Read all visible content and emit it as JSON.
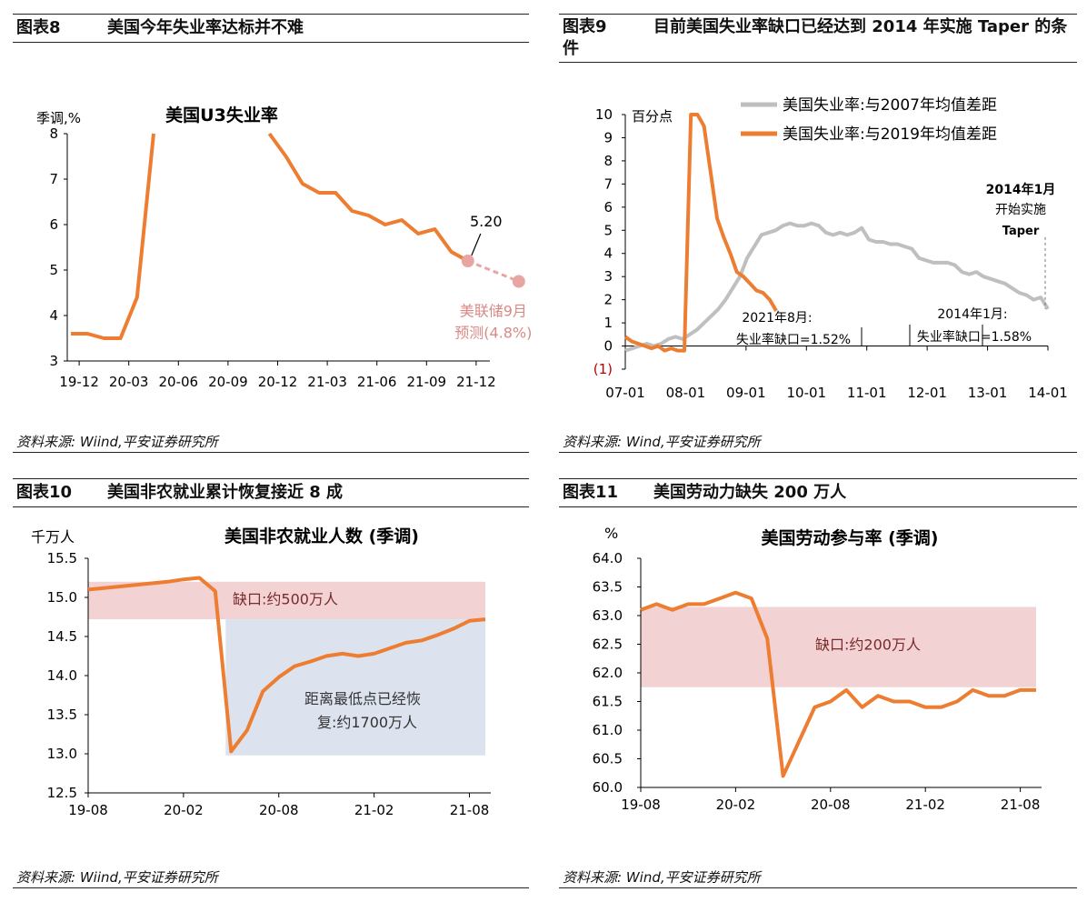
{
  "panels": [
    {
      "id": "p8",
      "header_num": "图表8",
      "header_title": "美国今年失业率达标并不难",
      "source": "资料来源: Wiind,平安证券研究所"
    },
    {
      "id": "p9",
      "header_num": "图表9",
      "header_title": "目前美国失业率缺口已经达到 2014 年实施 Taper 的条件",
      "source": "资料来源: Wind,平安证券研究所"
    },
    {
      "id": "p10",
      "header_num": "图表10",
      "header_title": "美国非农就业累计恢复接近 8 成",
      "source": "资料来源: Wiind,平安证券研究所"
    },
    {
      "id": "p11",
      "header_num": "图表11",
      "header_title": "美国劳动力缺失 200 万人",
      "source": "资料来源: Wind,平安证券研究所"
    }
  ],
  "chart_data": [
    {
      "id": "p8",
      "type": "line",
      "title": "美国U3失业率",
      "ylabel": "季调,%",
      "ylim": [
        3,
        8
      ],
      "yticks": [
        3,
        4,
        5,
        6,
        7,
        8
      ],
      "xticks": [
        "19-12",
        "20-03",
        "20-06",
        "20-09",
        "20-12",
        "21-03",
        "21-06",
        "21-09",
        "21-12"
      ],
      "series": [
        {
          "color": "#ED7D31",
          "values": [
            3.6,
            3.6,
            3.5,
            3.5,
            4.4,
            8.0,
            null,
            null,
            null,
            null,
            null,
            null,
            8.0,
            7.5,
            6.9,
            6.7,
            6.7,
            6.3,
            6.2,
            6.0,
            6.1,
            5.8,
            5.9,
            5.4,
            5.2
          ]
        }
      ],
      "forecast": {
        "color": "#E8A6A3",
        "from": 5.2,
        "to": 4.75
      },
      "annotations": {
        "label_value": "5.20",
        "forecast_note": [
          "美联储9月",
          "预测(4.8%)"
        ]
      },
      "colors": {
        "line": "#ED7D31",
        "forecast": "#E8A6A3",
        "note": "#D98A86"
      }
    },
    {
      "id": "p9",
      "type": "line",
      "ylabel": "百分点",
      "ylim": [
        -1,
        10
      ],
      "yticks": [
        "(1)",
        "0",
        "1",
        "2",
        "3",
        "4",
        "5",
        "6",
        "7",
        "8",
        "9",
        "10"
      ],
      "xticks": [
        "07-01",
        "08-01",
        "09-01",
        "10-01",
        "11-01",
        "12-01",
        "13-01",
        "14-01"
      ],
      "series": [
        {
          "name": "美国失业率:与2007年均值差距",
          "color": "#BFBFBF",
          "values": [
            -0.2,
            -0.1,
            0.0,
            0.1,
            0.0,
            0.1,
            0.3,
            0.4,
            0.3,
            0.5,
            0.7,
            1.0,
            1.3,
            1.6,
            2.0,
            2.5,
            3.0,
            3.8,
            4.3,
            4.8,
            4.9,
            5.0,
            5.2,
            5.3,
            5.2,
            5.2,
            5.3,
            5.2,
            4.9,
            4.8,
            4.9,
            4.8,
            4.9,
            5.1,
            4.6,
            4.5,
            4.5,
            4.4,
            4.4,
            4.3,
            4.2,
            3.8,
            3.7,
            3.6,
            3.6,
            3.6,
            3.5,
            3.2,
            3.1,
            3.2,
            3.0,
            2.9,
            2.8,
            2.7,
            2.5,
            2.3,
            2.2,
            2.0,
            2.1,
            1.6
          ]
        },
        {
          "name": "美国失业率:与2019年均值差距",
          "color": "#ED7D31",
          "values": [
            0.4,
            0.2,
            0.1,
            0.0,
            -0.1,
            0.0,
            -0.2,
            -0.1,
            -0.2,
            -0.2,
            10.0,
            10.0,
            9.5,
            7.5,
            5.5,
            4.7,
            4.0,
            3.2,
            3.0,
            2.7,
            2.4,
            2.3,
            2.0,
            1.52
          ]
        }
      ],
      "annotations": {
        "note_2014": [
          "2014年1月",
          "开始实施",
          "Taper"
        ],
        "gap_2021": [
          "2021年8月:",
          "失业率缺口=1.52%"
        ],
        "gap_2014": [
          "2014年1月:",
          "失业率缺口=1.58%"
        ]
      }
    },
    {
      "id": "p10",
      "type": "line",
      "title": "美国非农就业人数 (季调)",
      "ylabel": "千万人",
      "ylim": [
        12.5,
        15.5
      ],
      "yticks": [
        "12.5",
        "13.0",
        "13.5",
        "14.0",
        "14.5",
        "15.0",
        "15.5"
      ],
      "xticks": [
        "19-08",
        "20-02",
        "20-08",
        "21-02",
        "21-08"
      ],
      "series": [
        {
          "color": "#ED7D31",
          "values": [
            15.1,
            15.12,
            15.14,
            15.16,
            15.18,
            15.2,
            15.23,
            15.25,
            15.08,
            13.03,
            13.3,
            13.8,
            13.98,
            14.12,
            14.18,
            14.25,
            14.28,
            14.25,
            14.28,
            14.35,
            14.42,
            14.45,
            14.52,
            14.6,
            14.7,
            14.72
          ]
        }
      ],
      "bands": [
        {
          "label": "缺口:约500万人",
          "from": 14.72,
          "to": 15.2,
          "color": "#F2D2D2"
        },
        {
          "label": "距离最低点已经恢复:约1700万人",
          "from": 12.98,
          "to": 14.72,
          "color": "#DCE3EE"
        }
      ]
    },
    {
      "id": "p11",
      "type": "line",
      "title": "美国劳动参与率 (季调)",
      "ylabel": "%",
      "ylim": [
        60.0,
        64.0
      ],
      "yticks": [
        "60.0",
        "60.5",
        "61.0",
        "61.5",
        "62.0",
        "62.5",
        "63.0",
        "63.5",
        "64.0"
      ],
      "xticks": [
        "19-08",
        "20-02",
        "20-08",
        "21-02",
        "21-08"
      ],
      "series": [
        {
          "color": "#ED7D31",
          "values": [
            63.1,
            63.2,
            63.1,
            63.2,
            63.2,
            63.3,
            63.4,
            63.3,
            62.6,
            60.2,
            60.8,
            61.4,
            61.5,
            61.7,
            61.4,
            61.6,
            61.5,
            61.5,
            61.4,
            61.4,
            61.5,
            61.7,
            61.6,
            61.6,
            61.7,
            61.7
          ]
        }
      ],
      "bands": [
        {
          "label": "缺口:约200万人",
          "from": 61.75,
          "to": 63.15,
          "color": "#F2D2D2"
        }
      ]
    }
  ]
}
